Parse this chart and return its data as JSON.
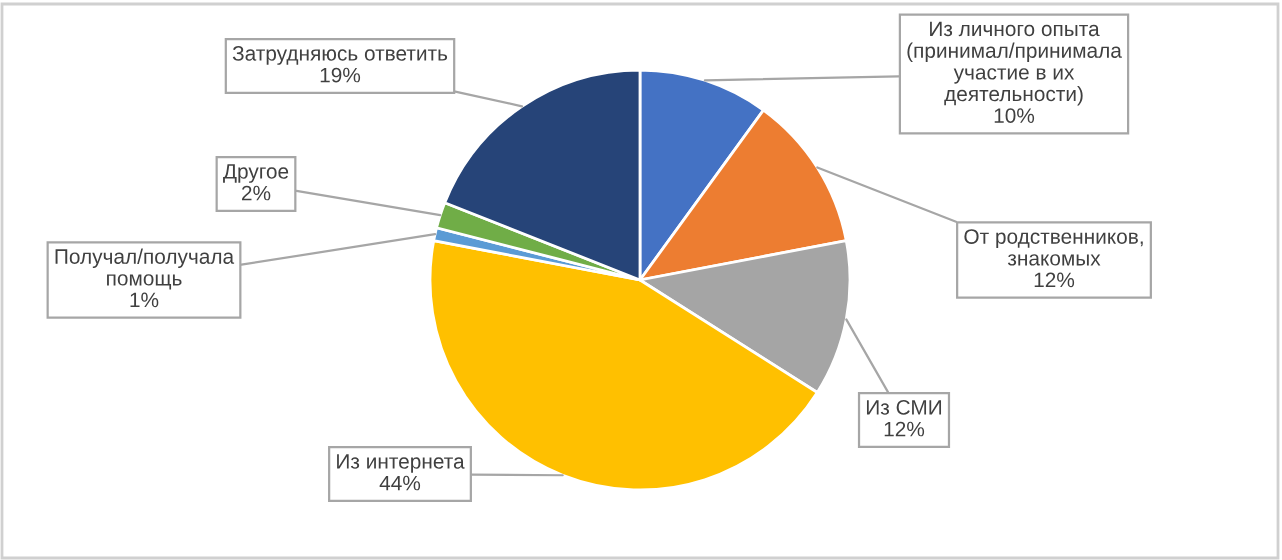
{
  "chart_data": {
    "type": "pie",
    "categories": [
      "Из личного опыта\n(принимал/принимала\nучастие в их\nдеятельности)",
      "От родственников,\nзнакомых",
      "Из СМИ",
      "Из интернета",
      "Получал/получала\nпомощь",
      "Другое",
      "Затрудняюсь ответить"
    ],
    "values": [
      10,
      12,
      12,
      44,
      1,
      2,
      19
    ],
    "value_labels": [
      "10%",
      "12%",
      "12%",
      "44%",
      "1%",
      "2%",
      "19%"
    ],
    "colors": [
      "#4472c4",
      "#ed7d31",
      "#a5a5a5",
      "#ffc000",
      "#5b9bd5",
      "#70ad47",
      "#264478"
    ]
  }
}
